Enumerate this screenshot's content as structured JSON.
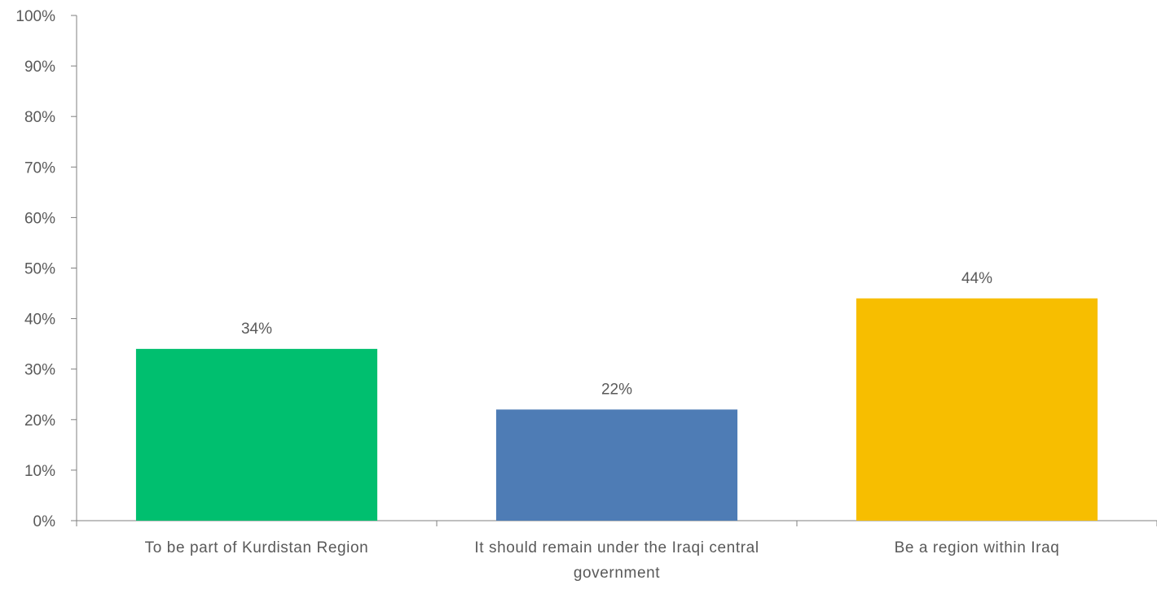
{
  "chart_data": {
    "type": "bar",
    "categories": [
      [
        "To be part of Kurdistan Region"
      ],
      [
        "It should remain under the Iraqi central",
        "government"
      ],
      [
        "Be a region within Iraq"
      ]
    ],
    "values": [
      34,
      22,
      44
    ],
    "data_labels": [
      "34%",
      "22%",
      "44%"
    ],
    "colors": [
      "#00BF6F",
      "#4E7CB5",
      "#F7BE00"
    ],
    "ylim": [
      0,
      100
    ],
    "y_ticks": [
      0,
      10,
      20,
      30,
      40,
      50,
      60,
      70,
      80,
      90,
      100
    ],
    "y_tick_labels": [
      "0%",
      "10%",
      "20%",
      "30%",
      "40%",
      "50%",
      "60%",
      "70%",
      "80%",
      "90%",
      "100%"
    ],
    "grid": false,
    "legend": "none",
    "title": "",
    "xlabel": "",
    "ylabel": ""
  }
}
